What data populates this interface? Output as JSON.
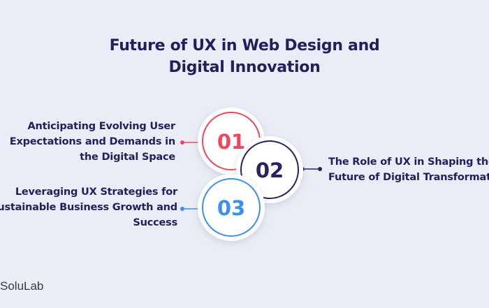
{
  "title": {
    "line1": "Future of UX in Web Design and",
    "line2": "Digital Innovation"
  },
  "items": [
    {
      "number": "01",
      "color": "#f0475a",
      "lines": [
        "Anticipating Evolving User",
        "Expectations and Demands in",
        "the Digital Space"
      ]
    },
    {
      "number": "02",
      "color": "#2a2163",
      "lines": [
        "The Role of UX in Shaping the",
        "Future of Digital Transformation"
      ]
    },
    {
      "number": "03",
      "color": "#3b8ff0",
      "lines": [
        "Leveraging UX Strategies for",
        "Sustainable Business Growth and",
        "Success"
      ]
    }
  ],
  "brand": "SoluLab"
}
